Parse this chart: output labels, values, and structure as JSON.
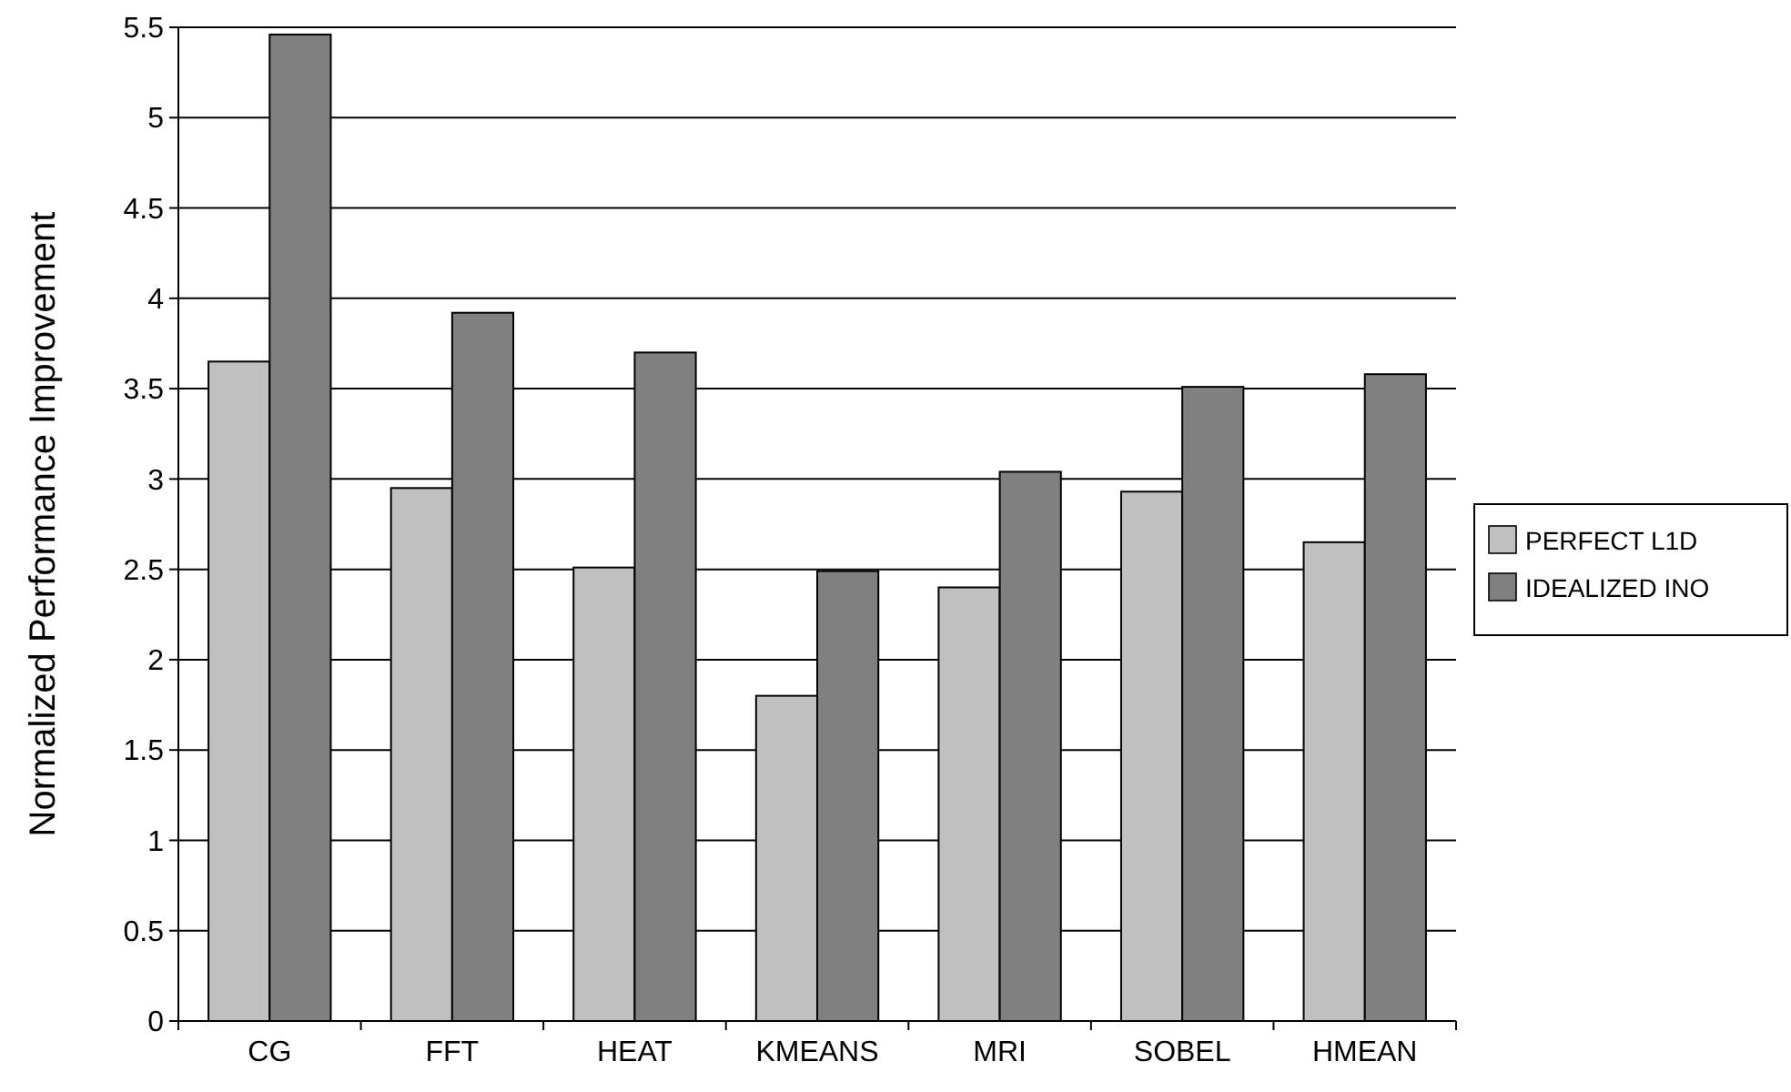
{
  "chart_data": {
    "type": "bar",
    "ylabel": "Normalized Performance Improvement",
    "categories": [
      "CG",
      "FFT",
      "HEAT",
      "KMEANS",
      "MRI",
      "SOBEL",
      "HMEAN"
    ],
    "series": [
      {
        "name": "PERFECT L1D",
        "color": "#c0c0c0",
        "values": [
          3.65,
          2.95,
          2.51,
          1.8,
          2.4,
          2.93,
          2.65
        ]
      },
      {
        "name": "IDEALIZED INO",
        "color": "#808080",
        "values": [
          5.46,
          3.92,
          3.7,
          2.49,
          3.04,
          3.51,
          3.58
        ]
      }
    ],
    "ylim": [
      0,
      5.5
    ],
    "yticks": [
      0,
      0.5,
      1,
      1.5,
      2,
      2.5,
      3,
      3.5,
      4,
      4.5,
      5,
      5.5
    ],
    "grid": "y",
    "legend": "right"
  }
}
